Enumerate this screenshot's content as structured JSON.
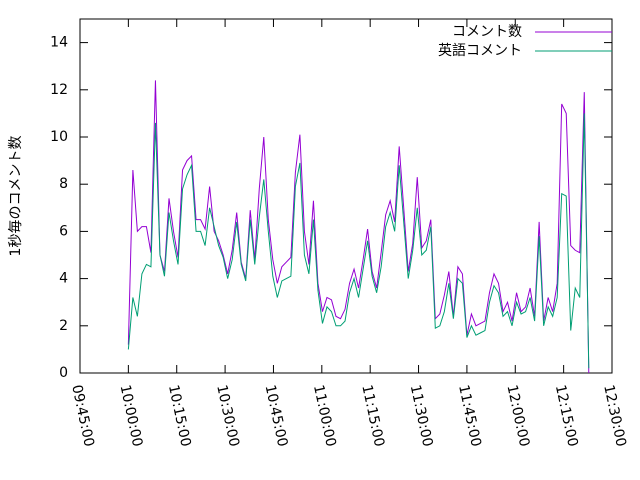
{
  "chart_data": {
    "type": "line",
    "ylabel": "1秒毎のコメント数",
    "x": [
      36000,
      36084,
      36168,
      36252,
      36336,
      36420,
      36504,
      36588,
      36672,
      36756,
      36840,
      36924,
      37008,
      37092,
      37176,
      37260,
      37344,
      37428,
      37512,
      37596,
      37680,
      37764,
      37848,
      37932,
      38016,
      38100,
      38184,
      38268,
      38352,
      38436,
      38520,
      38604,
      38688,
      38772,
      38856,
      38940,
      39024,
      39108,
      39192,
      39276,
      39360,
      39444,
      39528,
      39612,
      39696,
      39780,
      39864,
      39948,
      40032,
      40116,
      40200,
      40284,
      40368,
      40452,
      40536,
      40620,
      40704,
      40788,
      40872,
      40956,
      41040,
      41124,
      41208,
      41292,
      41376,
      41460,
      41544,
      41628,
      41712,
      41796,
      41880,
      41964,
      42048,
      42132,
      42216,
      42300,
      42384,
      42468,
      42552,
      42636,
      42720,
      42804,
      42888,
      42972,
      43056,
      43140,
      43224,
      43308,
      43392,
      43476,
      43560,
      43644,
      43728,
      43812,
      43896,
      43980,
      44064,
      44148,
      44232,
      44316,
      44400,
      44484,
      44568
    ],
    "series": [
      {
        "name": "コメント数",
        "color": "#9400d3",
        "values": [
          1.2,
          8.6,
          6.0,
          6.2,
          6.2,
          5.1,
          12.4,
          5.0,
          4.3,
          7.4,
          6.0,
          4.9,
          8.6,
          9.0,
          9.2,
          6.5,
          6.5,
          6.1,
          7.9,
          6.0,
          5.6,
          5.0,
          4.2,
          5.2,
          6.8,
          4.7,
          4.0,
          6.9,
          4.8,
          7.8,
          10.0,
          6.5,
          4.8,
          3.8,
          4.5,
          4.7,
          4.9,
          8.5,
          10.1,
          6.0,
          4.6,
          7.3,
          3.8,
          2.6,
          3.2,
          3.1,
          2.4,
          2.3,
          2.7,
          3.8,
          4.4,
          3.6,
          4.8,
          6.1,
          4.3,
          3.6,
          5.1,
          6.7,
          7.3,
          6.4,
          9.6,
          7.0,
          4.3,
          5.5,
          8.3,
          5.3,
          5.6,
          6.5,
          2.3,
          2.5,
          3.3,
          4.3,
          2.4,
          4.5,
          4.2,
          1.6,
          2.5,
          2.0,
          2.1,
          2.2,
          3.4,
          4.2,
          3.8,
          2.6,
          3.0,
          2.2,
          3.4,
          2.6,
          2.8,
          3.6,
          2.4,
          6.4,
          2.2,
          3.2,
          2.6,
          3.8,
          11.4,
          11.0,
          5.4,
          5.2,
          5.1,
          11.9,
          0.0
        ]
      },
      {
        "name": "英語コメント",
        "color": "#009e73",
        "values": [
          1.0,
          3.2,
          2.4,
          4.2,
          4.6,
          4.5,
          10.6,
          5.0,
          4.1,
          6.8,
          5.6,
          4.6,
          7.8,
          8.4,
          8.8,
          6.0,
          6.0,
          5.4,
          7.0,
          6.2,
          5.4,
          4.9,
          4.0,
          4.8,
          6.4,
          4.6,
          3.9,
          6.5,
          4.6,
          6.6,
          8.2,
          6.0,
          4.1,
          3.2,
          3.9,
          4.0,
          4.1,
          7.9,
          8.9,
          5.0,
          4.2,
          6.5,
          3.5,
          2.1,
          2.8,
          2.6,
          2.0,
          2.0,
          2.2,
          3.4,
          4.0,
          3.2,
          4.4,
          5.6,
          4.1,
          3.4,
          4.5,
          6.2,
          6.8,
          6.0,
          8.8,
          6.4,
          4.0,
          5.2,
          7.0,
          5.0,
          5.2,
          6.2,
          1.9,
          2.0,
          2.6,
          3.8,
          2.3,
          4.0,
          3.8,
          1.5,
          2.0,
          1.6,
          1.7,
          1.8,
          3.0,
          3.7,
          3.4,
          2.4,
          2.6,
          2.0,
          3.0,
          2.5,
          2.6,
          3.2,
          2.2,
          5.8,
          2.0,
          2.8,
          2.4,
          3.2,
          7.6,
          7.5,
          1.8,
          3.6,
          3.2,
          11.0,
          0.2
        ]
      }
    ],
    "xlim": [
      35100,
      45000
    ],
    "xticks": [
      {
        "value": 35100,
        "label": "09:45:00"
      },
      {
        "value": 36000,
        "label": "10:00:00"
      },
      {
        "value": 36900,
        "label": "10:15:00"
      },
      {
        "value": 37800,
        "label": "10:30:00"
      },
      {
        "value": 38700,
        "label": "10:45:00"
      },
      {
        "value": 39600,
        "label": "11:00:00"
      },
      {
        "value": 40500,
        "label": "11:15:00"
      },
      {
        "value": 41400,
        "label": "11:30:00"
      },
      {
        "value": 42300,
        "label": "11:45:00"
      },
      {
        "value": 43200,
        "label": "12:00:00"
      },
      {
        "value": 44100,
        "label": "12:15:00"
      },
      {
        "value": 45000,
        "label": "12:30:00"
      }
    ],
    "ylim": [
      0,
      15
    ],
    "yticks": [
      0,
      2,
      4,
      6,
      8,
      10,
      12,
      14
    ],
    "legend": "top-right"
  }
}
